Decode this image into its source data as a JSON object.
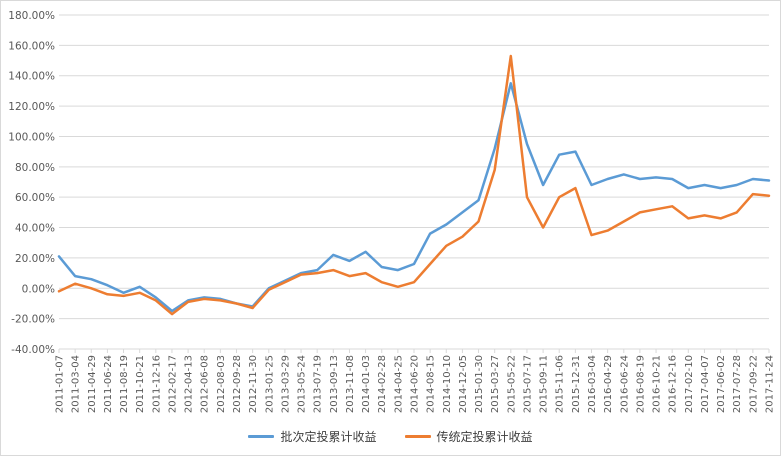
{
  "chart_data": {
    "type": "line",
    "title": "",
    "xlabel": "",
    "ylabel": "",
    "ylim": [
      -40,
      180
    ],
    "y_ticks": [
      "-40.00%",
      "-20.00%",
      "0.00%",
      "20.00%",
      "40.00%",
      "60.00%",
      "80.00%",
      "100.00%",
      "120.00%",
      "140.00%",
      "160.00%",
      "180.00%"
    ],
    "x_ticks": [
      "2011-01-07",
      "2011-03-04",
      "2011-04-29",
      "2011-06-24",
      "2011-08-19",
      "2011-10-21",
      "2011-12-16",
      "2012-02-17",
      "2012-04-13",
      "2012-06-08",
      "2012-08-03",
      "2012-09-28",
      "2012-11-30",
      "2013-01-25",
      "2013-03-29",
      "2013-05-24",
      "2013-07-19",
      "2013-09-13",
      "2013-11-08",
      "2014-01-03",
      "2014-02-28",
      "2014-04-25",
      "2014-06-20",
      "2014-08-15",
      "2014-10-10",
      "2014-12-05",
      "2015-01-30",
      "2015-03-27",
      "2015-05-22",
      "2015-07-17",
      "2015-09-11",
      "2015-11-06",
      "2015-12-31",
      "2016-03-04",
      "2016-04-29",
      "2016-06-24",
      "2016-08-19",
      "2016-10-21",
      "2016-12-16",
      "2017-02-10",
      "2017-04-07",
      "2017-06-02",
      "2017-07-28",
      "2017-09-22",
      "2017-11-24"
    ],
    "grid": true,
    "legend_position": "bottom",
    "series": [
      {
        "name": "批次定投累计收益",
        "color": "#5b9bd5",
        "x": [
          0,
          1,
          2,
          3,
          4,
          5,
          6,
          7,
          8,
          9,
          10,
          11,
          12,
          13,
          14,
          15,
          16,
          17,
          18,
          19,
          20,
          21,
          22,
          23,
          24,
          25,
          26,
          27,
          28,
          29,
          30,
          31,
          32,
          33,
          34,
          35,
          36,
          37,
          38,
          39,
          40,
          41,
          42,
          43,
          44
        ],
        "values": [
          21,
          8,
          6,
          2,
          -3,
          1,
          -6,
          -15,
          -8,
          -6,
          -7,
          -10,
          -12,
          0,
          5,
          10,
          12,
          22,
          18,
          24,
          14,
          12,
          16,
          36,
          42,
          50,
          58,
          92,
          135,
          95,
          68,
          88,
          90,
          68,
          72,
          75,
          72,
          73,
          72,
          66,
          68,
          66,
          68,
          72,
          71
        ]
      },
      {
        "name": "传统定投累计收益",
        "color": "#ed7d31",
        "x": [
          0,
          1,
          2,
          3,
          4,
          5,
          6,
          7,
          8,
          9,
          10,
          11,
          12,
          13,
          14,
          15,
          16,
          17,
          18,
          19,
          20,
          21,
          22,
          23,
          24,
          25,
          26,
          27,
          28,
          29,
          30,
          31,
          32,
          33,
          34,
          35,
          36,
          37,
          38,
          39,
          40,
          41,
          42,
          43,
          44
        ],
        "values": [
          -2,
          3,
          0,
          -4,
          -5,
          -3,
          -8,
          -17,
          -9,
          -7,
          -8,
          -10,
          -13,
          -1,
          4,
          9,
          10,
          12,
          8,
          10,
          4,
          1,
          4,
          16,
          28,
          34,
          44,
          78,
          153,
          60,
          40,
          60,
          66,
          35,
          38,
          44,
          50,
          52,
          54,
          46,
          48,
          46,
          50,
          62,
          61
        ]
      }
    ]
  }
}
